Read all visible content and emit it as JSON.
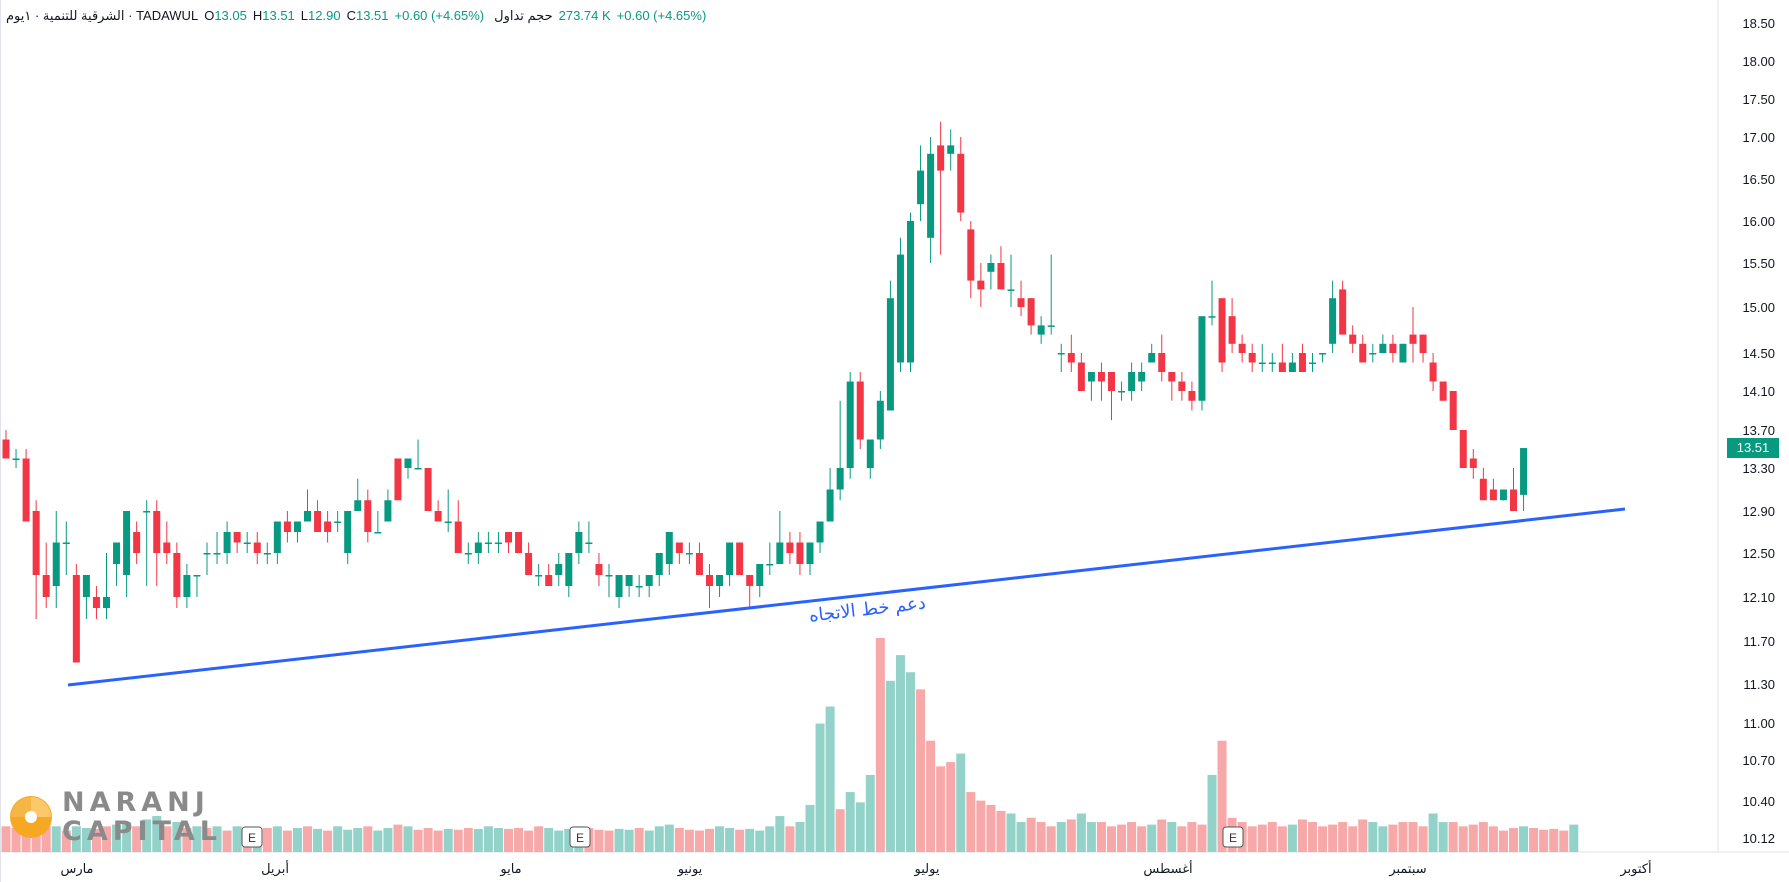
{
  "header": {
    "symbol": "الشرقية للتنمية · ١يوم · TADAWUL",
    "open_label": "O",
    "open": "13.05",
    "high_label": "H",
    "high": "13.51",
    "low_label": "L",
    "low": "12.90",
    "close_label": "C",
    "close": "13.51",
    "change": "+0.60 (+4.65%)",
    "volume_label": "حجم تداول",
    "volume": "273.74 K",
    "volume_change": "+0.60 (+4.65%)"
  },
  "logo": {
    "line1": "NARANJ",
    "line2": "CAPITAL"
  },
  "colors": {
    "up": "#089981",
    "down": "#f23645",
    "up_vol": "#92d2c8",
    "down_vol": "#f7a8a8",
    "trendline": "#2962ff"
  },
  "chart_data": {
    "type": "candlestick",
    "y_axis_ticks": [
      "18.50",
      "18.00",
      "17.50",
      "17.00",
      "16.50",
      "16.00",
      "15.50",
      "15.00",
      "14.50",
      "14.10",
      "13.70",
      "13.30",
      "12.90",
      "12.50",
      "12.10",
      "11.70",
      "11.30",
      "11.00",
      "10.70",
      "10.40",
      "10.12"
    ],
    "x_axis_labels": [
      "مارس",
      "أبريل",
      "مايو",
      "يونيو",
      "يوليو",
      "أغسطس",
      "سبتمبر",
      "أكتوبر"
    ],
    "last_price": "13.51",
    "annotation": "دعم خط الاتجاه",
    "event_marker": "E",
    "candles": [
      [
        13.6,
        13.7,
        13.4,
        13.4
      ],
      [
        13.4,
        13.5,
        13.3,
        13.4
      ],
      [
        13.4,
        13.5,
        12.8,
        12.8
      ],
      [
        12.9,
        13.0,
        11.9,
        12.3
      ],
      [
        12.3,
        12.6,
        12.0,
        12.1
      ],
      [
        12.2,
        12.9,
        12.0,
        12.6
      ],
      [
        12.6,
        12.8,
        12.3,
        12.6
      ],
      [
        12.3,
        12.4,
        11.5,
        11.5
      ],
      [
        12.1,
        12.3,
        11.9,
        12.3
      ],
      [
        12.1,
        12.2,
        11.9,
        12.0
      ],
      [
        12.0,
        12.5,
        11.9,
        12.1
      ],
      [
        12.4,
        12.6,
        12.2,
        12.6
      ],
      [
        12.3,
        12.9,
        12.1,
        12.9
      ],
      [
        12.7,
        12.8,
        12.4,
        12.5
      ],
      [
        12.9,
        13.0,
        12.2,
        12.9
      ],
      [
        12.9,
        13.0,
        12.2,
        12.5
      ],
      [
        12.6,
        12.8,
        12.4,
        12.5
      ],
      [
        12.5,
        12.6,
        12.0,
        12.1
      ],
      [
        12.1,
        12.4,
        12.0,
        12.3
      ],
      [
        12.3,
        12.3,
        12.1,
        12.3
      ],
      [
        12.5,
        12.6,
        12.3,
        12.5
      ],
      [
        12.5,
        12.7,
        12.4,
        12.5
      ],
      [
        12.5,
        12.8,
        12.4,
        12.7
      ],
      [
        12.7,
        12.7,
        12.5,
        12.6
      ],
      [
        12.6,
        12.7,
        12.5,
        12.6
      ],
      [
        12.6,
        12.7,
        12.4,
        12.5
      ],
      [
        12.5,
        12.6,
        12.4,
        12.5
      ],
      [
        12.5,
        12.8,
        12.4,
        12.8
      ],
      [
        12.8,
        12.9,
        12.6,
        12.7
      ],
      [
        12.7,
        12.8,
        12.6,
        12.8
      ],
      [
        12.8,
        13.1,
        12.8,
        12.9
      ],
      [
        12.9,
        13.0,
        12.7,
        12.7
      ],
      [
        12.8,
        12.9,
        12.6,
        12.7
      ],
      [
        12.8,
        12.9,
        12.7,
        12.8
      ],
      [
        12.5,
        12.9,
        12.4,
        12.9
      ],
      [
        12.9,
        13.2,
        12.9,
        13.0
      ],
      [
        13.0,
        13.1,
        12.6,
        12.7
      ],
      [
        12.7,
        12.9,
        12.7,
        12.7
      ],
      [
        12.8,
        13.1,
        12.8,
        13.0
      ],
      [
        13.4,
        13.4,
        13.0,
        13.0
      ],
      [
        13.3,
        13.4,
        13.2,
        13.4
      ],
      [
        13.3,
        13.6,
        13.3,
        13.3
      ],
      [
        13.3,
        13.3,
        12.9,
        12.9
      ],
      [
        12.9,
        13.0,
        12.8,
        12.8
      ],
      [
        12.8,
        13.1,
        12.7,
        12.8
      ],
      [
        12.8,
        13.0,
        12.5,
        12.5
      ],
      [
        12.5,
        12.6,
        12.4,
        12.5
      ],
      [
        12.5,
        12.7,
        12.4,
        12.6
      ],
      [
        12.6,
        12.7,
        12.5,
        12.6
      ],
      [
        12.6,
        12.7,
        12.5,
        12.6
      ],
      [
        12.7,
        12.7,
        12.5,
        12.6
      ],
      [
        12.7,
        12.7,
        12.5,
        12.5
      ],
      [
        12.5,
        12.6,
        12.3,
        12.3
      ],
      [
        12.3,
        12.4,
        12.2,
        12.3
      ],
      [
        12.3,
        12.4,
        12.2,
        12.2
      ],
      [
        12.3,
        12.5,
        12.2,
        12.4
      ],
      [
        12.2,
        12.5,
        12.1,
        12.5
      ],
      [
        12.5,
        12.8,
        12.4,
        12.7
      ],
      [
        12.6,
        12.8,
        12.5,
        12.6
      ],
      [
        12.4,
        12.5,
        12.2,
        12.3
      ],
      [
        12.3,
        12.4,
        12.1,
        12.3
      ],
      [
        12.1,
        12.3,
        12.0,
        12.3
      ],
      [
        12.2,
        12.3,
        12.1,
        12.3
      ],
      [
        12.2,
        12.3,
        12.1,
        12.2
      ],
      [
        12.2,
        12.3,
        12.1,
        12.3
      ],
      [
        12.3,
        12.5,
        12.2,
        12.5
      ],
      [
        12.4,
        12.7,
        12.3,
        12.7
      ],
      [
        12.6,
        12.6,
        12.4,
        12.5
      ],
      [
        12.5,
        12.6,
        12.4,
        12.5
      ],
      [
        12.5,
        12.6,
        12.3,
        12.3
      ],
      [
        12.3,
        12.4,
        12.0,
        12.2
      ],
      [
        12.2,
        12.3,
        12.1,
        12.3
      ],
      [
        12.3,
        12.6,
        12.2,
        12.6
      ],
      [
        12.6,
        12.6,
        12.3,
        12.3
      ],
      [
        12.3,
        12.3,
        12.0,
        12.2
      ],
      [
        12.2,
        12.4,
        12.1,
        12.4
      ],
      [
        12.4,
        12.6,
        12.3,
        12.4
      ],
      [
        12.4,
        12.9,
        12.4,
        12.6
      ],
      [
        12.6,
        12.7,
        12.4,
        12.5
      ],
      [
        12.6,
        12.7,
        12.3,
        12.4
      ],
      [
        12.4,
        12.6,
        12.3,
        12.6
      ],
      [
        12.6,
        12.8,
        12.5,
        12.8
      ],
      [
        12.8,
        13.3,
        12.8,
        13.1
      ],
      [
        13.1,
        14.0,
        13.0,
        13.3
      ],
      [
        13.3,
        14.3,
        13.2,
        14.2
      ],
      [
        14.2,
        14.3,
        13.5,
        13.6
      ],
      [
        13.3,
        13.6,
        13.2,
        13.6
      ],
      [
        13.6,
        14.1,
        13.5,
        14.0
      ],
      [
        13.9,
        15.3,
        13.9,
        15.1
      ],
      [
        14.4,
        15.8,
        14.3,
        15.6
      ],
      [
        14.4,
        16.1,
        14.3,
        16.0
      ],
      [
        16.2,
        16.9,
        16.0,
        16.6
      ],
      [
        15.8,
        17.0,
        15.5,
        16.8
      ],
      [
        16.9,
        17.2,
        15.6,
        16.6
      ],
      [
        16.8,
        17.1,
        16.6,
        16.9
      ],
      [
        16.8,
        17.0,
        16.0,
        16.1
      ],
      [
        15.9,
        16.0,
        15.1,
        15.3
      ],
      [
        15.3,
        15.5,
        15.0,
        15.2
      ],
      [
        15.4,
        15.6,
        15.2,
        15.5
      ],
      [
        15.5,
        15.7,
        15.2,
        15.2
      ],
      [
        15.2,
        15.6,
        15.0,
        15.2
      ],
      [
        15.1,
        15.3,
        14.9,
        15.0
      ],
      [
        15.1,
        15.1,
        14.7,
        14.8
      ],
      [
        14.7,
        14.9,
        14.6,
        14.8
      ],
      [
        14.8,
        15.6,
        14.7,
        14.8
      ],
      [
        14.5,
        14.6,
        14.3,
        14.5
      ],
      [
        14.5,
        14.7,
        14.3,
        14.4
      ],
      [
        14.4,
        14.5,
        14.1,
        14.1
      ],
      [
        14.2,
        14.3,
        14.0,
        14.3
      ],
      [
        14.3,
        14.4,
        14.0,
        14.2
      ],
      [
        14.3,
        14.3,
        13.8,
        14.1
      ],
      [
        14.1,
        14.2,
        14.0,
        14.1
      ],
      [
        14.1,
        14.4,
        14.0,
        14.3
      ],
      [
        14.2,
        14.4,
        14.1,
        14.3
      ],
      [
        14.4,
        14.6,
        14.4,
        14.5
      ],
      [
        14.5,
        14.7,
        14.2,
        14.3
      ],
      [
        14.3,
        14.3,
        14.0,
        14.2
      ],
      [
        14.2,
        14.3,
        14.0,
        14.1
      ],
      [
        14.1,
        14.2,
        13.9,
        14.0
      ],
      [
        14.0,
        14.9,
        13.9,
        14.9
      ],
      [
        14.9,
        15.3,
        14.8,
        14.9
      ],
      [
        15.1,
        15.1,
        14.3,
        14.4
      ],
      [
        14.9,
        15.1,
        14.5,
        14.6
      ],
      [
        14.6,
        14.7,
        14.4,
        14.5
      ],
      [
        14.5,
        14.6,
        14.3,
        14.4
      ],
      [
        14.4,
        14.6,
        14.3,
        14.4
      ],
      [
        14.4,
        14.5,
        14.3,
        14.4
      ],
      [
        14.4,
        14.6,
        14.3,
        14.3
      ],
      [
        14.3,
        14.5,
        14.3,
        14.4
      ],
      [
        14.5,
        14.6,
        14.3,
        14.3
      ],
      [
        14.4,
        14.5,
        14.3,
        14.4
      ],
      [
        14.5,
        14.5,
        14.4,
        14.5
      ],
      [
        14.6,
        15.3,
        14.5,
        15.1
      ],
      [
        15.2,
        15.3,
        14.7,
        14.7
      ],
      [
        14.7,
        14.8,
        14.5,
        14.6
      ],
      [
        14.6,
        14.7,
        14.4,
        14.4
      ],
      [
        14.5,
        14.6,
        14.4,
        14.5
      ],
      [
        14.5,
        14.7,
        14.5,
        14.6
      ],
      [
        14.6,
        14.7,
        14.4,
        14.5
      ],
      [
        14.4,
        14.6,
        14.4,
        14.6
      ],
      [
        14.7,
        15.0,
        14.4,
        14.6
      ],
      [
        14.7,
        14.7,
        14.4,
        14.5
      ],
      [
        14.4,
        14.5,
        14.1,
        14.2
      ],
      [
        14.2,
        14.2,
        14.0,
        14.0
      ],
      [
        14.1,
        14.1,
        13.7,
        13.7
      ],
      [
        13.7,
        13.7,
        13.3,
        13.3
      ],
      [
        13.4,
        13.5,
        13.2,
        13.3
      ],
      [
        13.2,
        13.3,
        13.0,
        13.0
      ],
      [
        13.1,
        13.2,
        13.0,
        13.0
      ],
      [
        13.0,
        13.1,
        13.0,
        13.1
      ],
      [
        13.1,
        13.3,
        12.9,
        12.9
      ],
      [
        13.05,
        13.51,
        12.9,
        13.51
      ]
    ],
    "volume": [
      0.3,
      0.28,
      0.32,
      0.35,
      0.3,
      0.3,
      0.25,
      0.3,
      0.28,
      0.27,
      0.3,
      0.32,
      0.35,
      0.3,
      0.38,
      0.42,
      0.3,
      0.35,
      0.28,
      0.3,
      0.28,
      0.3,
      0.25,
      0.3,
      0.28,
      0.26,
      0.28,
      0.3,
      0.25,
      0.28,
      0.3,
      0.27,
      0.25,
      0.3,
      0.26,
      0.28,
      0.3,
      0.25,
      0.28,
      0.32,
      0.3,
      0.26,
      0.28,
      0.25,
      0.27,
      0.26,
      0.28,
      0.27,
      0.3,
      0.28,
      0.27,
      0.28,
      0.25,
      0.3,
      0.28,
      0.25,
      0.27,
      0.3,
      0.28,
      0.26,
      0.25,
      0.27,
      0.26,
      0.28,
      0.25,
      0.3,
      0.32,
      0.28,
      0.26,
      0.25,
      0.27,
      0.3,
      0.28,
      0.26,
      0.27,
      0.25,
      0.3,
      0.42,
      0.3,
      0.35,
      0.55,
      1.5,
      1.7,
      0.5,
      0.7,
      0.58,
      0.9,
      2.5,
      2.0,
      2.3,
      2.1,
      1.9,
      1.3,
      1.0,
      1.05,
      1.15,
      0.7,
      0.6,
      0.55,
      0.48,
      0.45,
      0.35,
      0.4,
      0.35,
      0.3,
      0.35,
      0.38,
      0.45,
      0.35,
      0.35,
      0.3,
      0.32,
      0.35,
      0.3,
      0.32,
      0.38,
      0.35,
      0.3,
      0.35,
      0.32,
      0.9,
      1.3,
      0.4,
      0.35,
      0.3,
      0.32,
      0.35,
      0.3,
      0.32,
      0.38,
      0.35,
      0.3,
      0.32,
      0.35,
      0.3,
      0.38,
      0.35,
      0.3,
      0.32,
      0.35,
      0.35,
      0.3,
      0.45,
      0.35,
      0.35,
      0.3,
      0.32,
      0.35,
      0.3,
      0.25,
      0.28,
      0.3,
      0.28,
      0.26,
      0.27,
      0.25,
      0.32
    ],
    "volume_colors": [
      0,
      0,
      0,
      0,
      0,
      1,
      0,
      1,
      1,
      0,
      0,
      1,
      1,
      0,
      1,
      1,
      0,
      1,
      0,
      1,
      0,
      1,
      0,
      1,
      0,
      1,
      0,
      1,
      0,
      1,
      0,
      1,
      0,
      1,
      1,
      1,
      0,
      1,
      1,
      0,
      1,
      0,
      0,
      0,
      1,
      0,
      0,
      1,
      1,
      1,
      0,
      0,
      0,
      0,
      1,
      1,
      1,
      1,
      0,
      0,
      0,
      1,
      1,
      0,
      1,
      1,
      1,
      0,
      0,
      0,
      0,
      1,
      1,
      0,
      1,
      1,
      1,
      1,
      0,
      1,
      1,
      1,
      1,
      0,
      1,
      1,
      1,
      0,
      1,
      1,
      1,
      0,
      0,
      0,
      0,
      1,
      0,
      0,
      0,
      0,
      1,
      1,
      0,
      0,
      0,
      1,
      0,
      1,
      1,
      0,
      0,
      0,
      0,
      0,
      1,
      0,
      1,
      0,
      0,
      0,
      1,
      0,
      0,
      0,
      0,
      0,
      0,
      0,
      1,
      0,
      0,
      0,
      0,
      0,
      0,
      0,
      1,
      1,
      0,
      0,
      0,
      0,
      1,
      1,
      0,
      0,
      0,
      0,
      0,
      0,
      0,
      1,
      0,
      0,
      0,
      0,
      1
    ]
  }
}
